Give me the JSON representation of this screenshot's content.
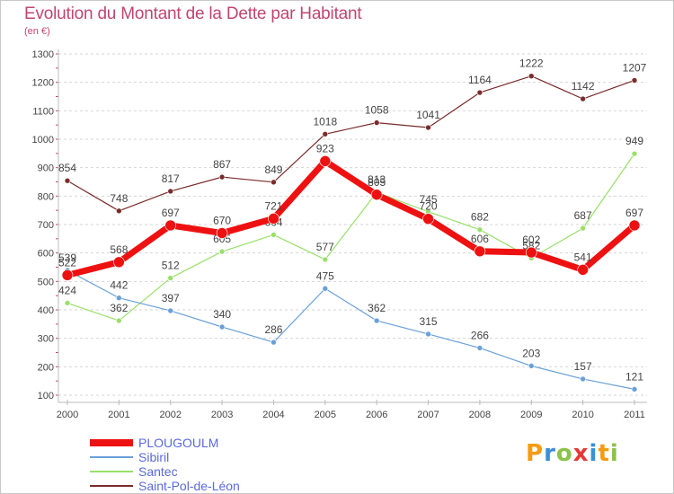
{
  "chart_data": {
    "type": "line",
    "title": "Evolution du Montant de la Dette par Habitant",
    "subtitle": "(en €)",
    "xlabel": "",
    "ylabel": "",
    "x": [
      "2000",
      "2001",
      "2002",
      "2003",
      "2004",
      "2005",
      "2006",
      "2007",
      "2008",
      "2009",
      "2010",
      "2011"
    ],
    "ylim": [
      100,
      1300
    ],
    "yticks": [
      100,
      200,
      300,
      400,
      500,
      600,
      700,
      800,
      900,
      1000,
      1100,
      1200,
      1300
    ],
    "grid": "horizontal-dashed",
    "series": [
      {
        "name": "Saint-Pol-de-Léon",
        "color": "#7a2b2b",
        "values": [
          854,
          748,
          817,
          867,
          849,
          1018,
          1058,
          1041,
          1164,
          1222,
          1142,
          1207
        ]
      },
      {
        "name": "Santec",
        "color": "#99e06a",
        "values": [
          424,
          362,
          512,
          605,
          664,
          577,
          813,
          745,
          682,
          582,
          687,
          949
        ]
      },
      {
        "name": "Sibiril",
        "color": "#6aa0d8",
        "values": [
          539,
          442,
          397,
          340,
          286,
          475,
          362,
          315,
          266,
          203,
          157,
          121
        ]
      },
      {
        "name": "PLOUGOULM",
        "color": "#ee1111",
        "values": [
          522,
          568,
          697,
          670,
          721,
          923,
          805,
          720,
          606,
          602,
          541,
          697
        ]
      }
    ],
    "legend": {
      "position": "bottom-left",
      "items": [
        {
          "label": "PLOUGOULM",
          "color": "#ee1111"
        },
        {
          "label": "Sibiril",
          "color": "#6aa0d8"
        },
        {
          "label": "Santec",
          "color": "#99e06a"
        },
        {
          "label": "Saint-Pol-de-Léon",
          "color": "#7a2b2b"
        }
      ]
    }
  },
  "logo": {
    "text": "Proxiti",
    "letters": [
      {
        "ch": "P",
        "color": "#f39c12"
      },
      {
        "ch": "r",
        "color": "#3a8fd8"
      },
      {
        "ch": "o",
        "color": "#8bc34a"
      },
      {
        "ch": "x",
        "color": "#e53935"
      },
      {
        "ch": "i",
        "color": "#3a8fd8"
      },
      {
        "ch": "t",
        "color": "#f39c12"
      },
      {
        "ch": "i",
        "color": "#8bc34a"
      }
    ]
  }
}
